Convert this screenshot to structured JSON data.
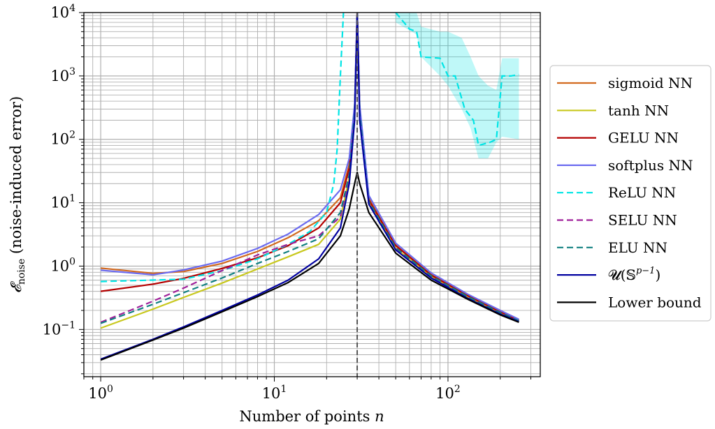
{
  "chart_data": {
    "type": "line",
    "xlabel": "Number of points",
    "xlabel_var": "n",
    "ylabel": "(noise-induced error)",
    "ylabel_symbol": "𝓔",
    "ylabel_subscript": "noise",
    "x_scale": "log",
    "y_scale": "log",
    "xlim": [
      0.8,
      340
    ],
    "ylim": [
      0.018,
      10000
    ],
    "grid": true,
    "legend_position": "right",
    "x_ticks": [
      {
        "value": 1,
        "base": "10",
        "exp": "0"
      },
      {
        "value": 10,
        "base": "10",
        "exp": "1"
      },
      {
        "value": 100,
        "base": "10",
        "exp": "2"
      }
    ],
    "y_ticks": [
      {
        "value": 0.1,
        "base": "10",
        "exp": "−1"
      },
      {
        "value": 1,
        "base": "10",
        "exp": "0"
      },
      {
        "value": 10,
        "base": "10",
        "exp": "1"
      },
      {
        "value": 100,
        "base": "10",
        "exp": "2"
      },
      {
        "value": 1000,
        "base": "10",
        "exp": "3"
      },
      {
        "value": 10000,
        "base": "10",
        "exp": "4"
      }
    ],
    "vline_x": 30,
    "series": [
      {
        "name": "sigmoid NN",
        "color": "#d2691e",
        "dash": "solid",
        "points": [
          [
            1,
            0.93
          ],
          [
            2,
            0.77
          ],
          [
            3,
            0.82
          ],
          [
            5,
            1.1
          ],
          [
            8,
            1.7
          ],
          [
            12,
            2.8
          ],
          [
            18,
            5.2
          ],
          [
            24,
            12
          ],
          [
            27,
            40
          ],
          [
            29,
            300
          ],
          [
            30,
            10000
          ],
          [
            31,
            300
          ],
          [
            35,
            12
          ],
          [
            50,
            2.2
          ],
          [
            80,
            0.75
          ],
          [
            130,
            0.35
          ],
          [
            200,
            0.2
          ],
          [
            256,
            0.14
          ]
        ]
      },
      {
        "name": "tanh NN",
        "color": "#c8c81e",
        "dash": "solid",
        "points": [
          [
            1,
            0.105
          ],
          [
            2,
            0.21
          ],
          [
            3,
            0.32
          ],
          [
            5,
            0.54
          ],
          [
            8,
            0.9
          ],
          [
            12,
            1.4
          ],
          [
            18,
            2.2
          ],
          [
            24,
            5.5
          ],
          [
            27,
            25
          ],
          [
            29,
            250
          ],
          [
            30,
            10000
          ],
          [
            31,
            250
          ],
          [
            35,
            10
          ],
          [
            50,
            1.9
          ],
          [
            80,
            0.68
          ],
          [
            130,
            0.32
          ],
          [
            200,
            0.18
          ],
          [
            256,
            0.135
          ]
        ]
      },
      {
        "name": "GELU NN",
        "color": "#b40000",
        "dash": "solid",
        "points": [
          [
            1,
            0.4
          ],
          [
            2,
            0.52
          ],
          [
            3,
            0.64
          ],
          [
            5,
            0.92
          ],
          [
            8,
            1.35
          ],
          [
            12,
            2.1
          ],
          [
            18,
            4.0
          ],
          [
            24,
            10
          ],
          [
            27,
            35
          ],
          [
            29,
            280
          ],
          [
            30,
            10000
          ],
          [
            31,
            280
          ],
          [
            35,
            11
          ],
          [
            50,
            2.1
          ],
          [
            80,
            0.72
          ],
          [
            130,
            0.34
          ],
          [
            200,
            0.19
          ],
          [
            256,
            0.14
          ]
        ]
      },
      {
        "name": "softplus NN",
        "color": "#6b6bf0",
        "dash": "solid",
        "points": [
          [
            1,
            0.86
          ],
          [
            2,
            0.73
          ],
          [
            3,
            0.87
          ],
          [
            5,
            1.2
          ],
          [
            8,
            1.9
          ],
          [
            12,
            3.2
          ],
          [
            18,
            6.5
          ],
          [
            24,
            16
          ],
          [
            27,
            50
          ],
          [
            29,
            350
          ],
          [
            30,
            10000
          ],
          [
            31,
            350
          ],
          [
            35,
            13
          ],
          [
            50,
            2.3
          ],
          [
            80,
            0.78
          ],
          [
            130,
            0.36
          ],
          [
            200,
            0.2
          ],
          [
            256,
            0.145
          ]
        ]
      },
      {
        "name": "ReLU NN",
        "color": "#00e5e5",
        "dash": "dashed",
        "points": [
          [
            1,
            0.57
          ],
          [
            3,
            0.62
          ],
          [
            5,
            0.85
          ],
          [
            8,
            1.3
          ],
          [
            12,
            2.2
          ],
          [
            16,
            3.5
          ],
          [
            20,
            7
          ],
          [
            22,
            20
          ],
          [
            23,
            70
          ],
          [
            24,
            1000
          ],
          [
            25,
            10000
          ]
        ],
        "tail": [
          [
            50,
            10000
          ],
          [
            60,
            5500
          ],
          [
            66,
            5000
          ],
          [
            70,
            2000
          ],
          [
            90,
            1900
          ],
          [
            100,
            1000
          ],
          [
            110,
            1000
          ],
          [
            125,
            300
          ],
          [
            140,
            200
          ],
          [
            150,
            80
          ],
          [
            175,
            90
          ],
          [
            190,
            100
          ],
          [
            205,
            1000
          ],
          [
            230,
            1000
          ],
          [
            256,
            1050
          ]
        ],
        "band_upper": [
          [
            50,
            10000
          ],
          [
            66,
            10000
          ],
          [
            70,
            6000
          ],
          [
            90,
            5000
          ],
          [
            100,
            5000
          ],
          [
            120,
            4000
          ],
          [
            135,
            2000
          ],
          [
            150,
            1000
          ],
          [
            170,
            700
          ],
          [
            190,
            600
          ],
          [
            205,
            1900
          ],
          [
            256,
            1900
          ]
        ],
        "band_lower": [
          [
            50,
            7000
          ],
          [
            66,
            4500
          ],
          [
            70,
            2000
          ],
          [
            90,
            1000
          ],
          [
            100,
            700
          ],
          [
            120,
            300
          ],
          [
            135,
            150
          ],
          [
            150,
            50
          ],
          [
            170,
            50
          ],
          [
            190,
            90
          ],
          [
            205,
            110
          ],
          [
            256,
            100
          ]
        ]
      },
      {
        "name": "SELU NN",
        "color": "#a0209a",
        "dash": "dashed",
        "points": [
          [
            1,
            0.13
          ],
          [
            2,
            0.28
          ],
          [
            3,
            0.45
          ],
          [
            5,
            0.85
          ],
          [
            8,
            1.5
          ],
          [
            12,
            2.2
          ],
          [
            18,
            3.0
          ],
          [
            24,
            6.0
          ],
          [
            27,
            25
          ],
          [
            29,
            250
          ],
          [
            30,
            10000
          ],
          [
            31,
            250
          ],
          [
            35,
            10
          ],
          [
            50,
            1.9
          ],
          [
            80,
            0.68
          ],
          [
            130,
            0.32
          ],
          [
            200,
            0.18
          ],
          [
            256,
            0.135
          ]
        ]
      },
      {
        "name": "ELU NN",
        "color": "#118080",
        "dash": "dashed",
        "points": [
          [
            1,
            0.125
          ],
          [
            2,
            0.25
          ],
          [
            3,
            0.38
          ],
          [
            5,
            0.65
          ],
          [
            8,
            1.1
          ],
          [
            12,
            1.7
          ],
          [
            18,
            2.7
          ],
          [
            24,
            7
          ],
          [
            27,
            28
          ],
          [
            29,
            260
          ],
          [
            30,
            10000
          ],
          [
            31,
            260
          ],
          [
            35,
            10.5
          ],
          [
            50,
            1.95
          ],
          [
            80,
            0.7
          ],
          [
            130,
            0.33
          ],
          [
            200,
            0.185
          ],
          [
            256,
            0.137
          ]
        ]
      },
      {
        "name": "𝓤(𝕊",
        "name_sup": "p−1",
        "name_tail": ")",
        "color": "#0000a0",
        "dash": "solid",
        "points": [
          [
            1,
            0.034
          ],
          [
            2,
            0.07
          ],
          [
            3,
            0.11
          ],
          [
            5,
            0.2
          ],
          [
            8,
            0.35
          ],
          [
            12,
            0.6
          ],
          [
            18,
            1.3
          ],
          [
            24,
            4
          ],
          [
            27,
            20
          ],
          [
            29,
            200
          ],
          [
            30,
            10000
          ],
          [
            31,
            200
          ],
          [
            35,
            9.5
          ],
          [
            50,
            1.8
          ],
          [
            80,
            0.65
          ],
          [
            130,
            0.31
          ],
          [
            200,
            0.175
          ],
          [
            256,
            0.133
          ]
        ]
      },
      {
        "name": "Lower bound",
        "color": "#000000",
        "dash": "solid",
        "points": [
          [
            1,
            0.033
          ],
          [
            2,
            0.068
          ],
          [
            3,
            0.105
          ],
          [
            5,
            0.19
          ],
          [
            8,
            0.33
          ],
          [
            12,
            0.55
          ],
          [
            18,
            1.1
          ],
          [
            24,
            3
          ],
          [
            27,
            8
          ],
          [
            29,
            20
          ],
          [
            30,
            30
          ],
          [
            31,
            20
          ],
          [
            35,
            7
          ],
          [
            50,
            1.6
          ],
          [
            80,
            0.6
          ],
          [
            130,
            0.3
          ],
          [
            200,
            0.17
          ],
          [
            256,
            0.13
          ]
        ]
      }
    ]
  }
}
